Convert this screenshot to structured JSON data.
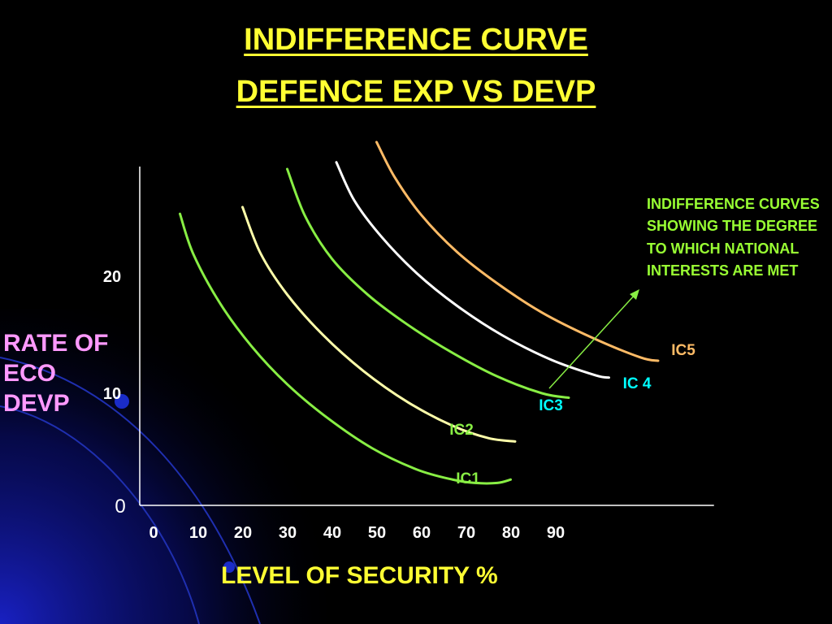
{
  "title_line1": "INDIFFERENCE CURVE",
  "title_line2": "DEFENCE EXP VS DEVP",
  "annotation": "INDIFFERENCE CURVES SHOWING THE DEGREE TO WHICH NATIONAL INTERESTS ARE MET",
  "colors": {
    "background": "#000000",
    "title": "#ffff33",
    "ylabel": "#ff99ff",
    "xlabel": "#ffff33",
    "annotation": "#99ff33"
  },
  "chart_data": {
    "type": "line",
    "xlabel": "LEVEL OF SECURITY %",
    "ylabel": "RATE OF ECO DEVP",
    "x_ticks": [
      "0",
      "10",
      "20",
      "30",
      "40",
      "50",
      "60",
      "70",
      "80",
      "90"
    ],
    "y_ticks": [
      "0",
      "10",
      "20"
    ],
    "xlim": [
      0,
      127
    ],
    "ylim": [
      0,
      30
    ],
    "series": [
      {
        "name": "IC1",
        "color": "#88ee44",
        "x": [
          9,
          12,
          18,
          25,
          33,
          42,
          52,
          62,
          70,
          75,
          80,
          83
        ],
        "y": [
          26,
          22.4,
          18,
          14.2,
          10.8,
          7.8,
          5.1,
          3.2,
          2.3,
          2.0,
          2.0,
          2.3
        ]
      },
      {
        "name": "IC2",
        "color": "#ffffaa",
        "x": [
          23,
          27,
          33,
          41,
          50,
          60,
          70,
          78,
          84
        ],
        "y": [
          26.6,
          22.5,
          18.8,
          15.2,
          12.0,
          9.2,
          7.1,
          6.0,
          5.7
        ]
      },
      {
        "name": "IC3",
        "color": "#88ee44",
        "x": [
          33,
          37,
          43,
          51,
          60,
          70,
          80,
          90,
          96
        ],
        "y": [
          30,
          25.8,
          22.0,
          18.8,
          16.1,
          13.6,
          11.5,
          10.0,
          9.6
        ]
      },
      {
        "name": "IC 4",
        "color": "#ffffff",
        "x": [
          44,
          48,
          54,
          62,
          71,
          81,
          92,
          102,
          105
        ],
        "y": [
          30.6,
          27.2,
          24.0,
          20.7,
          17.8,
          15.2,
          13.0,
          11.6,
          11.4
        ]
      },
      {
        "name": "IC5",
        "color": "#ffbb66",
        "x": [
          53,
          57,
          63,
          71,
          80,
          90,
          101,
          112,
          116
        ],
        "y": [
          32.4,
          29.3,
          25.9,
          22.6,
          19.8,
          17.2,
          15.0,
          13.2,
          12.9
        ]
      }
    ]
  }
}
